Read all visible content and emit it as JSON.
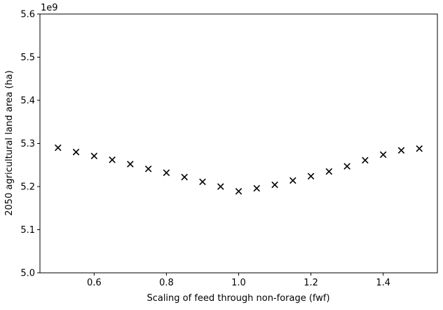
{
  "chart_data": {
    "type": "scatter",
    "title": "",
    "xlabel": "Scaling of feed through non-forage (fwf)",
    "ylabel": "2050 agricultural land area (ha)",
    "y_offset_label": "1e9",
    "xlim": [
      0.45,
      1.55
    ],
    "ylim": [
      5.0,
      5.6
    ],
    "x_ticks": [
      0.6,
      0.8,
      1.0,
      1.2,
      1.4
    ],
    "x_tick_labels": [
      "0.6",
      "0.8",
      "1.0",
      "1.2",
      "1.4"
    ],
    "y_ticks": [
      5.0,
      5.1,
      5.2,
      5.3,
      5.4,
      5.5,
      5.6
    ],
    "y_tick_labels": [
      "5.0",
      "5.1",
      "5.2",
      "5.3",
      "5.4",
      "5.5",
      "5.6"
    ],
    "grid": false,
    "marker": "x",
    "marker_color": "#000000",
    "x": [
      0.5,
      0.55,
      0.6,
      0.65,
      0.7,
      0.75,
      0.8,
      0.85,
      0.9,
      0.95,
      1.0,
      1.05,
      1.1,
      1.15,
      1.2,
      1.25,
      1.3,
      1.35,
      1.4,
      1.45,
      1.5
    ],
    "y": [
      5.29,
      5.28,
      5.271,
      5.262,
      5.252,
      5.241,
      5.232,
      5.222,
      5.211,
      5.2,
      5.189,
      5.196,
      5.204,
      5.214,
      5.224,
      5.235,
      5.247,
      5.261,
      5.274,
      5.284,
      5.288
    ]
  }
}
